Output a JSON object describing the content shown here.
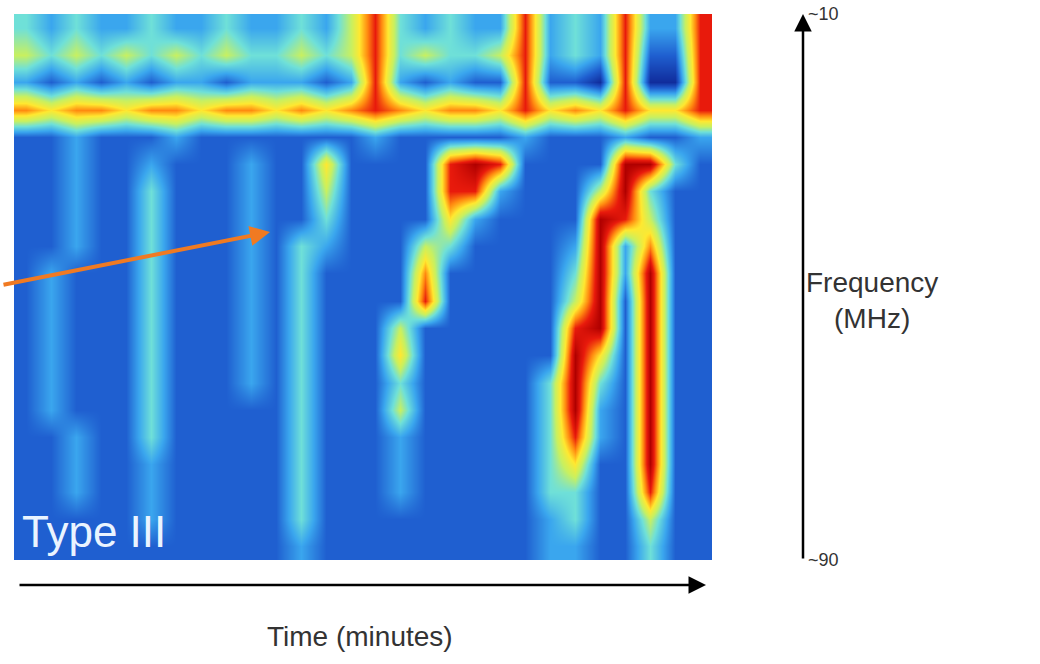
{
  "chart_data": {
    "type": "heatmap",
    "annotation": "Type III",
    "xlabel": "Time (minutes)",
    "ylabel": "Frequency (MHz)",
    "ylim": [
      90,
      10
    ],
    "yticks": [
      {
        "value": 10,
        "label": "~10"
      },
      {
        "value": 90,
        "label": "~90"
      }
    ],
    "tick_labels": "y",
    "grid": false,
    "zlim": [
      0,
      10
    ],
    "z": [
      [
        4,
        3,
        4,
        3,
        3,
        4,
        3,
        3,
        4,
        3,
        3,
        4,
        3,
        5,
        8,
        4,
        3,
        4,
        3,
        3,
        8,
        3,
        4,
        3,
        8,
        3,
        3,
        8
      ],
      [
        5,
        4,
        5,
        4,
        5,
        4,
        5,
        4,
        5,
        4,
        4,
        5,
        4,
        5,
        8,
        4,
        5,
        4,
        4,
        5,
        8,
        3,
        4,
        3,
        8,
        2,
        2,
        8
      ],
      [
        3,
        2,
        3,
        2,
        3,
        2,
        3,
        3,
        2,
        3,
        3,
        3,
        2,
        3,
        8,
        3,
        2,
        3,
        2,
        2,
        8,
        2,
        2,
        1,
        8,
        1,
        1,
        8
      ],
      [
        7,
        6,
        7,
        7,
        6,
        7,
        7,
        6,
        7,
        7,
        6,
        7,
        6,
        7,
        8,
        7,
        6,
        7,
        7,
        6,
        8,
        6,
        7,
        6,
        8,
        6,
        6,
        8
      ],
      [
        2,
        2,
        3,
        2,
        2,
        2,
        3,
        2,
        2,
        2,
        2,
        2,
        2,
        2,
        3,
        2,
        2,
        2,
        2,
        2,
        3,
        2,
        2,
        2,
        3,
        2,
        2,
        3
      ],
      [
        2,
        2,
        3,
        2,
        2,
        3,
        2,
        2,
        2,
        3,
        2,
        2,
        6,
        2,
        2,
        2,
        2,
        8,
        9,
        8,
        2,
        2,
        2,
        2,
        9,
        9,
        4,
        2
      ],
      [
        2,
        2,
        3,
        2,
        2,
        4,
        2,
        2,
        2,
        3,
        2,
        2,
        5,
        2,
        2,
        2,
        2,
        8,
        8,
        3,
        2,
        2,
        2,
        5,
        9,
        4,
        2,
        2
      ],
      [
        2,
        2,
        3,
        2,
        2,
        4,
        2,
        2,
        2,
        3,
        2,
        2,
        4,
        2,
        2,
        2,
        2,
        6,
        3,
        2,
        2,
        2,
        2,
        9,
        8,
        5,
        2,
        2
      ],
      [
        2,
        2,
        3,
        2,
        2,
        4,
        2,
        2,
        2,
        3,
        2,
        4,
        3,
        2,
        2,
        2,
        5,
        4,
        2,
        2,
        2,
        2,
        3,
        9,
        3,
        7,
        2,
        2
      ],
      [
        2,
        3,
        2,
        2,
        2,
        4,
        2,
        2,
        2,
        3,
        2,
        4,
        2,
        2,
        2,
        2,
        7,
        2,
        2,
        2,
        2,
        2,
        4,
        9,
        3,
        9,
        2,
        2
      ],
      [
        2,
        3,
        2,
        2,
        2,
        4,
        2,
        2,
        2,
        3,
        2,
        4,
        2,
        2,
        2,
        2,
        8,
        2,
        2,
        2,
        2,
        2,
        5,
        9,
        2,
        9,
        2,
        2
      ],
      [
        2,
        3,
        2,
        2,
        2,
        4,
        2,
        2,
        2,
        3,
        2,
        4,
        2,
        2,
        2,
        5,
        2,
        2,
        2,
        2,
        2,
        2,
        8,
        9,
        2,
        9,
        2,
        2
      ],
      [
        2,
        3,
        2,
        2,
        2,
        4,
        2,
        2,
        2,
        3,
        2,
        4,
        2,
        2,
        2,
        6,
        2,
        2,
        2,
        2,
        2,
        2,
        9,
        6,
        2,
        9,
        2,
        2
      ],
      [
        2,
        3,
        2,
        2,
        2,
        4,
        2,
        2,
        2,
        3,
        2,
        4,
        2,
        2,
        2,
        4,
        2,
        2,
        2,
        2,
        2,
        4,
        9,
        4,
        2,
        9,
        2,
        2
      ],
      [
        2,
        3,
        2,
        2,
        2,
        4,
        2,
        2,
        2,
        2,
        2,
        4,
        2,
        2,
        2,
        5,
        2,
        2,
        2,
        2,
        2,
        4,
        9,
        3,
        2,
        9,
        2,
        2
      ],
      [
        2,
        2,
        3,
        2,
        2,
        4,
        2,
        2,
        2,
        2,
        2,
        4,
        2,
        2,
        2,
        3,
        2,
        2,
        2,
        2,
        2,
        4,
        8,
        3,
        2,
        9,
        2,
        2
      ],
      [
        2,
        2,
        3,
        2,
        2,
        3,
        2,
        2,
        2,
        2,
        2,
        4,
        2,
        2,
        2,
        3,
        2,
        2,
        2,
        2,
        2,
        4,
        6,
        2,
        2,
        9,
        2,
        2
      ],
      [
        2,
        2,
        3,
        2,
        2,
        3,
        2,
        2,
        2,
        2,
        2,
        4,
        2,
        2,
        2,
        3,
        2,
        2,
        2,
        2,
        2,
        4,
        4,
        2,
        2,
        8,
        2,
        2
      ],
      [
        2,
        2,
        2,
        2,
        2,
        3,
        2,
        2,
        2,
        2,
        2,
        4,
        2,
        2,
        2,
        2,
        2,
        2,
        2,
        2,
        2,
        3,
        4,
        2,
        2,
        5,
        2,
        2
      ],
      [
        2,
        2,
        2,
        2,
        2,
        2,
        2,
        2,
        2,
        2,
        2,
        3,
        2,
        2,
        2,
        2,
        2,
        2,
        2,
        2,
        2,
        3,
        3,
        2,
        2,
        4,
        2,
        2
      ]
    ]
  }
}
